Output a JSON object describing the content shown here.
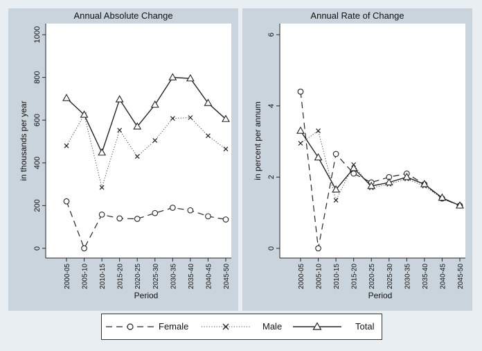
{
  "chart_data": [
    {
      "type": "line",
      "title": "Annual Absolute Change",
      "xlabel": "Period",
      "ylabel": "in thousands per year",
      "ylim": [
        0,
        1000
      ],
      "yticks": [
        "0",
        "200",
        "400",
        "600",
        "800",
        "1000"
      ],
      "categories": [
        "2000-05",
        "2005-10",
        "2010-15",
        "2015-20",
        "2020-25",
        "2025-30",
        "2030-35",
        "2035-40",
        "2040-45",
        "2045-50"
      ],
      "series": [
        {
          "name": "Female",
          "values": [
            220,
            0,
            158,
            140,
            138,
            165,
            190,
            178,
            150,
            135
          ]
        },
        {
          "name": "Male",
          "values": [
            480,
            625,
            285,
            553,
            430,
            505,
            608,
            612,
            527,
            465
          ]
        },
        {
          "name": "Total",
          "values": [
            703,
            625,
            448,
            697,
            570,
            672,
            800,
            795,
            680,
            605
          ]
        }
      ]
    },
    {
      "type": "line",
      "title": "Annual Rate of Change",
      "xlabel": "Period",
      "ylabel": "in percent per annum",
      "ylim": [
        0,
        6
      ],
      "yticks": [
        "0",
        "2",
        "4",
        "6"
      ],
      "categories": [
        "2000-05",
        "2005-10",
        "2010-15",
        "2015-20",
        "2020-25",
        "2025-30",
        "2030-35",
        "2035-40",
        "2040-45",
        "2045-50"
      ],
      "series": [
        {
          "name": "Female",
          "values": [
            4.4,
            0.0,
            2.65,
            2.1,
            1.85,
            2.0,
            2.1,
            1.8,
            1.4,
            1.2
          ]
        },
        {
          "name": "Male",
          "values": [
            2.95,
            3.3,
            1.35,
            2.35,
            1.7,
            1.8,
            1.95,
            1.75,
            1.4,
            1.2
          ]
        },
        {
          "name": "Total",
          "values": [
            3.3,
            2.55,
            1.65,
            2.25,
            1.75,
            1.85,
            2.0,
            1.8,
            1.42,
            1.2
          ]
        }
      ]
    }
  ],
  "legend": {
    "items": [
      {
        "label": "Female",
        "style": "female"
      },
      {
        "label": "Male",
        "style": "male"
      },
      {
        "label": "Total",
        "style": "total"
      }
    ]
  }
}
